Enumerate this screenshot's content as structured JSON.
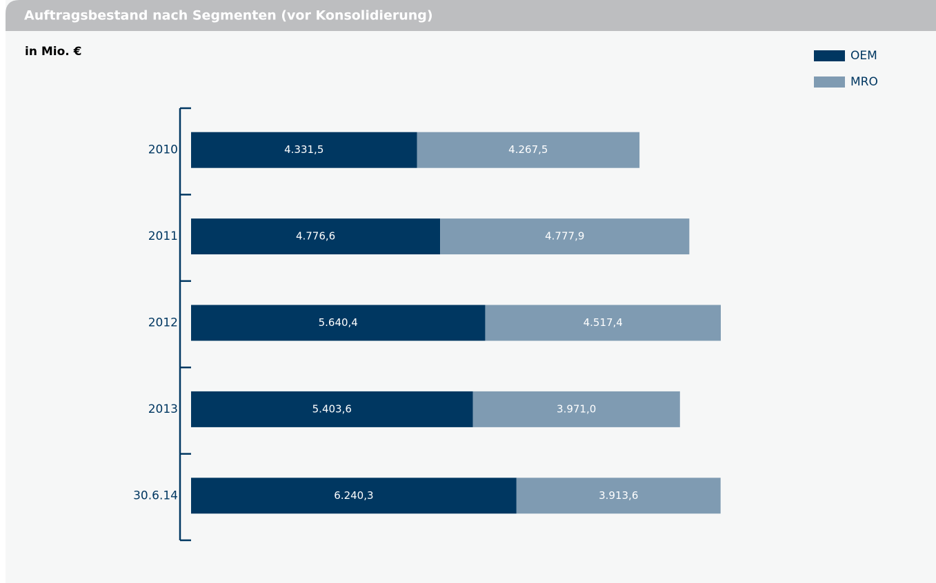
{
  "chart_data": {
    "type": "stacked_barh",
    "title": "Auftragsbestand nach Segmenten (vor Konsolidierung)",
    "subtitle": "in Mio. €",
    "categories": [
      "2010",
      "2011",
      "2012",
      "2013",
      "30.6.14"
    ],
    "series": [
      {
        "name": "OEM",
        "color": "#003761",
        "values": [
          4331.5,
          4776.6,
          5640.4,
          5403.6,
          6240.3
        ],
        "value_labels": [
          "4.331,5",
          "4.776,6",
          "5.640,4",
          "5.403,6",
          "6.240,3"
        ]
      },
      {
        "name": "MRO",
        "color": "#7f9bb2",
        "values": [
          4267.5,
          4777.9,
          4517.4,
          3971.0,
          3913.6
        ],
        "value_labels": [
          "4.267,5",
          "4.777,9",
          "4.517,4",
          "3.971,0",
          "3.913,6"
        ]
      }
    ],
    "legend": "top-right"
  }
}
